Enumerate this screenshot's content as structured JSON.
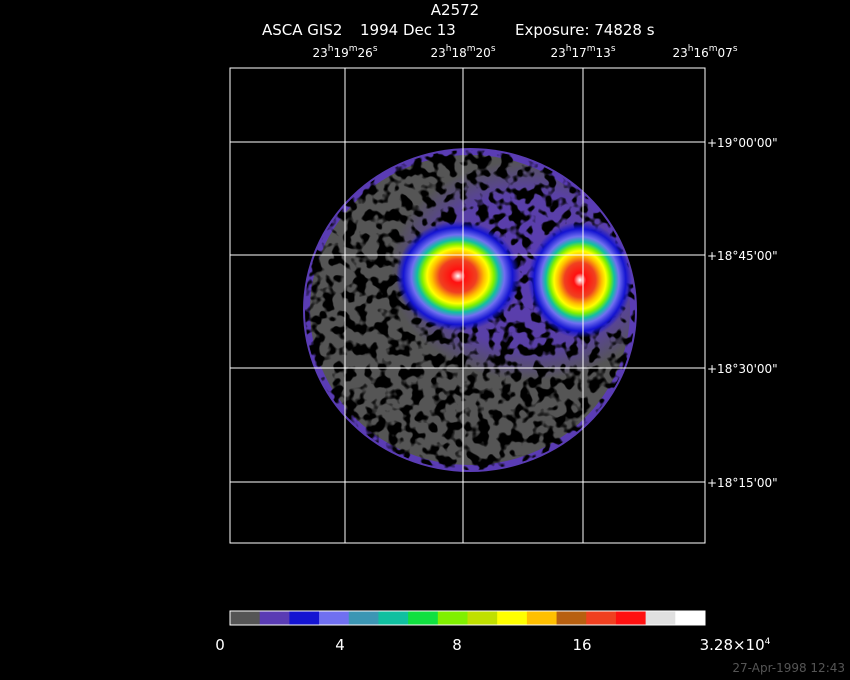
{
  "title": "A2572",
  "subtitle": {
    "instrument": "ASCA GIS2",
    "date": "1994 Dec 13",
    "exposure": "Exposure: 74828 s"
  },
  "ra_labels": [
    [
      "23",
      "h",
      "19",
      "m",
      "26",
      "s"
    ],
    [
      "23",
      "h",
      "18",
      "m",
      "20",
      "s"
    ],
    [
      "23",
      "h",
      "17",
      "m",
      "13",
      "s"
    ],
    [
      "23",
      "h",
      "16",
      "m",
      "07",
      "s"
    ]
  ],
  "dec_labels": [
    "+19°00'00\"",
    "+18°45'00\"",
    "+18°30'00\"",
    "+18°15'00\""
  ],
  "colorbar": {
    "colors": [
      "#555555",
      "#5a3cb4",
      "#1414d2",
      "#7070f0",
      "#3c96b4",
      "#10c0a0",
      "#10e040",
      "#80f000",
      "#c0e000",
      "#ffff00",
      "#ffc000",
      "#b86010",
      "#f04020",
      "#ff1010",
      "#e0e0e0",
      "#ffffff"
    ],
    "labels": [
      [
        "0"
      ],
      [
        "4"
      ],
      [
        "8"
      ],
      [
        "16"
      ],
      [
        "3.28×10",
        "4"
      ]
    ]
  },
  "timestamp": "27-Apr-1998 12:43"
}
